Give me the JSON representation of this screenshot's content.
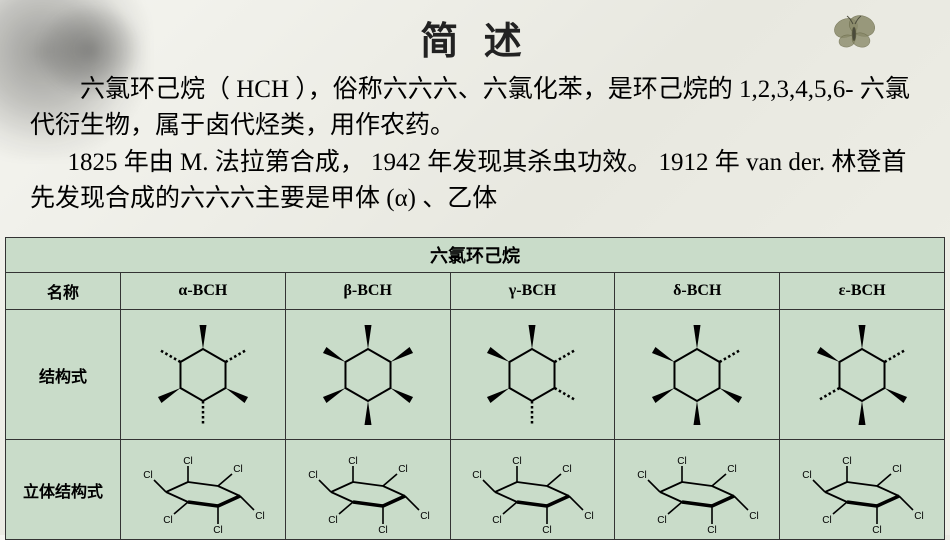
{
  "title": "简 述",
  "paragraphs": {
    "p1": "六氯环己烷（ HCH ），俗称六六六、六氯化苯，是环己烷的 1,2,3,4,5,6- 六氯代衍生物，属于卤代烃类，用作农药。",
    "p2": "1825 年由 M. 法拉第合成， 1942 年发现其杀虫功效。 1912 年 van der. 林登首先发现合成的六六六主要是甲体 (α) 、乙体"
  },
  "table": {
    "title": "六氯环己烷",
    "row_headers": {
      "name": "名称",
      "structure": "结构式",
      "stereo": "立体结构式"
    },
    "columns": [
      "α-BCH",
      "β-BCH",
      "γ-BCH",
      "δ-BCH",
      "ε-BCH"
    ],
    "colors": {
      "bg": "#c9dcc9",
      "border": "#333333",
      "text": "#000000",
      "bond": "#000000",
      "dash": "#000000",
      "title_fontsize": 18,
      "header_fontsize": 16,
      "body_fontsize": 25,
      "page_title_fontsize": 38
    },
    "structures": [
      {
        "name": "α-BCH",
        "wedge_pattern": [
          "u",
          "d",
          "u",
          "d",
          "u",
          "d"
        ],
        "dash_positions": [
          1,
          3,
          5
        ]
      },
      {
        "name": "β-BCH",
        "wedge_pattern": [
          "u",
          "u",
          "u",
          "u",
          "u",
          "u"
        ],
        "dash_positions": []
      },
      {
        "name": "γ-BCH",
        "wedge_pattern": [
          "u",
          "u",
          "u",
          "d",
          "d",
          "d"
        ],
        "dash_positions": [
          3,
          4,
          5
        ]
      },
      {
        "name": "δ-BCH",
        "wedge_pattern": [
          "u",
          "u",
          "u",
          "u",
          "u",
          "d"
        ],
        "dash_positions": [
          5
        ]
      },
      {
        "name": "ε-BCH",
        "wedge_pattern": [
          "u",
          "u",
          "d",
          "u",
          "u",
          "d"
        ],
        "dash_positions": [
          2,
          5
        ]
      }
    ],
    "stereo_label": "Cl"
  },
  "decorations": {
    "butterfly_color": "#8a8a6a",
    "ink_color": "rgba(30,30,30,0.4)"
  }
}
